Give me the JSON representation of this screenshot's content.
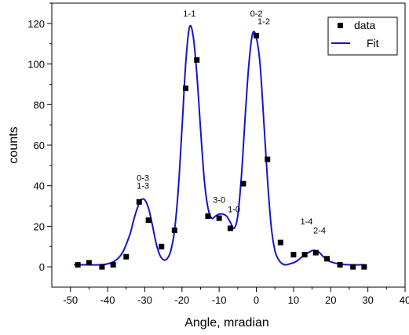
{
  "chart_data": {
    "type": "scatter",
    "xlabel": "Angle,  mradian",
    "ylabel": "counts",
    "xlim": [
      -55,
      40
    ],
    "ylim": [
      -10,
      130
    ],
    "x_ticks": [
      -50,
      -40,
      -30,
      -20,
      -10,
      0,
      10,
      20,
      30,
      40
    ],
    "y_ticks": [
      0,
      20,
      40,
      60,
      80,
      100,
      120
    ],
    "grid": false,
    "legend_position": "top-right",
    "series": [
      {
        "name": "data",
        "kind": "scatter",
        "marker": "square",
        "color": "#000000",
        "x": [
          -48,
          -45,
          -41.5,
          -38.5,
          -35,
          -31.5,
          -29,
          -25.5,
          -22,
          -19,
          -16,
          -13,
          -10,
          -7,
          -3.5,
          0,
          3,
          6.5,
          10,
          13,
          16,
          19,
          22.5,
          26,
          29
        ],
        "y": [
          1,
          2,
          0,
          1,
          5,
          32,
          23,
          10,
          18,
          88,
          102,
          25,
          24,
          19,
          41,
          114,
          53,
          12,
          6,
          6,
          7,
          4,
          1,
          0,
          0
        ]
      },
      {
        "name": "Fit",
        "kind": "line",
        "color": "#1515c8",
        "x": [
          -49,
          -45,
          -42,
          -40,
          -38,
          -36,
          -34,
          -33,
          -32,
          -31,
          -30,
          -29,
          -28,
          -27,
          -26,
          -25,
          -24,
          -23,
          -22,
          -21,
          -20,
          -19,
          -18,
          -17,
          -16,
          -15,
          -14,
          -13,
          -12,
          -11,
          -10,
          -9,
          -8,
          -7,
          -6,
          -5,
          -4,
          -3,
          -2,
          -1,
          0,
          1,
          2,
          3,
          4,
          5,
          6,
          7,
          8,
          9,
          10,
          11,
          12,
          13,
          14,
          15,
          16,
          17,
          18,
          19,
          20,
          22,
          25,
          29
        ],
        "y": [
          1,
          1,
          1,
          1.5,
          3,
          7,
          16,
          23,
          29,
          33,
          33,
          29,
          21,
          12,
          6,
          3.5,
          4,
          8,
          18,
          38,
          68,
          100,
          118,
          114,
          95,
          68,
          43,
          29,
          24,
          25,
          26,
          26,
          25,
          22,
          19,
          25,
          45,
          74,
          100,
          115,
          113,
          100,
          72,
          43,
          20,
          8,
          3.5,
          1.5,
          1,
          1.5,
          2,
          3,
          4.5,
          6,
          7,
          8,
          8,
          7,
          5,
          3.5,
          2.5,
          1.5,
          1,
          1
        ]
      }
    ],
    "annotations": [
      {
        "text": "1-1",
        "x": -18,
        "y": 123.5
      },
      {
        "text": "0-2",
        "x": 0,
        "y": 123.5
      },
      {
        "text": "1-2",
        "x": 2,
        "y": 119.5
      },
      {
        "text": "0-3",
        "x": -30.5,
        "y": 42.5
      },
      {
        "text": "1-3",
        "x": -30.5,
        "y": 38.5
      },
      {
        "text": "3-0",
        "x": -10,
        "y": 31.5
      },
      {
        "text": "1-0",
        "x": -6,
        "y": 27
      },
      {
        "text": "1-4",
        "x": 13.5,
        "y": 21
      },
      {
        "text": "2-4",
        "x": 17,
        "y": 16.5
      }
    ]
  }
}
